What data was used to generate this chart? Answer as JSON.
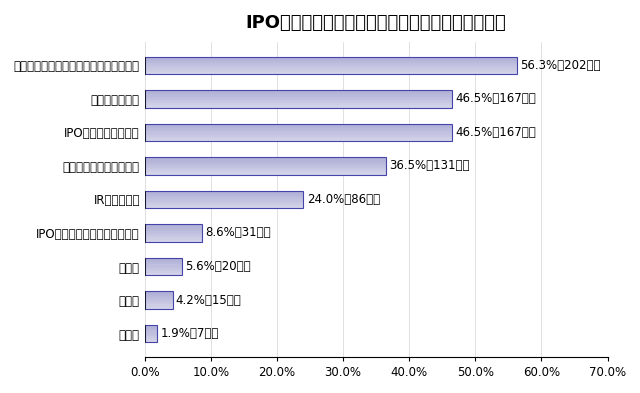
{
  "title": "IPOの検討にあたり特に強化すべき点（複数回答）",
  "categories": [
    "無回答",
    "その他",
    "非公表",
    "IPOアドバイザーとの関係強化",
    "IR部門の充実",
    "資本政策の立案・見直し",
    "IPO準備チームの編成",
    "幹部人材の育成",
    "コンプライアンス、内部監査体制の充実"
  ],
  "values": [
    1.9,
    4.2,
    5.6,
    8.6,
    24.0,
    36.5,
    46.5,
    46.5,
    56.3
  ],
  "labels": [
    "1.9%（7社）",
    "4.2%（15社）",
    "5.6%（20社）",
    "8.6%（31社）",
    "24.0%（86社）",
    "36.5%（131社）",
    "46.5%（167社）",
    "46.5%（167社）",
    "56.3%（202社）"
  ],
  "bar_color_face": "#9999cc",
  "bar_color_edge": "#4444aa",
  "bar_color_light": "#ddddee",
  "xlim": [
    0,
    70
  ],
  "xticks": [
    0,
    10,
    20,
    30,
    40,
    50,
    60,
    70
  ],
  "xtick_labels": [
    "0.0%",
    "10.0%",
    "20.0%",
    "30.0%",
    "40.0%",
    "50.0%",
    "60.0%",
    "70.0%"
  ],
  "title_fontsize": 13,
  "label_fontsize": 8.5,
  "tick_fontsize": 8.5,
  "bg_color": "#ffffff"
}
